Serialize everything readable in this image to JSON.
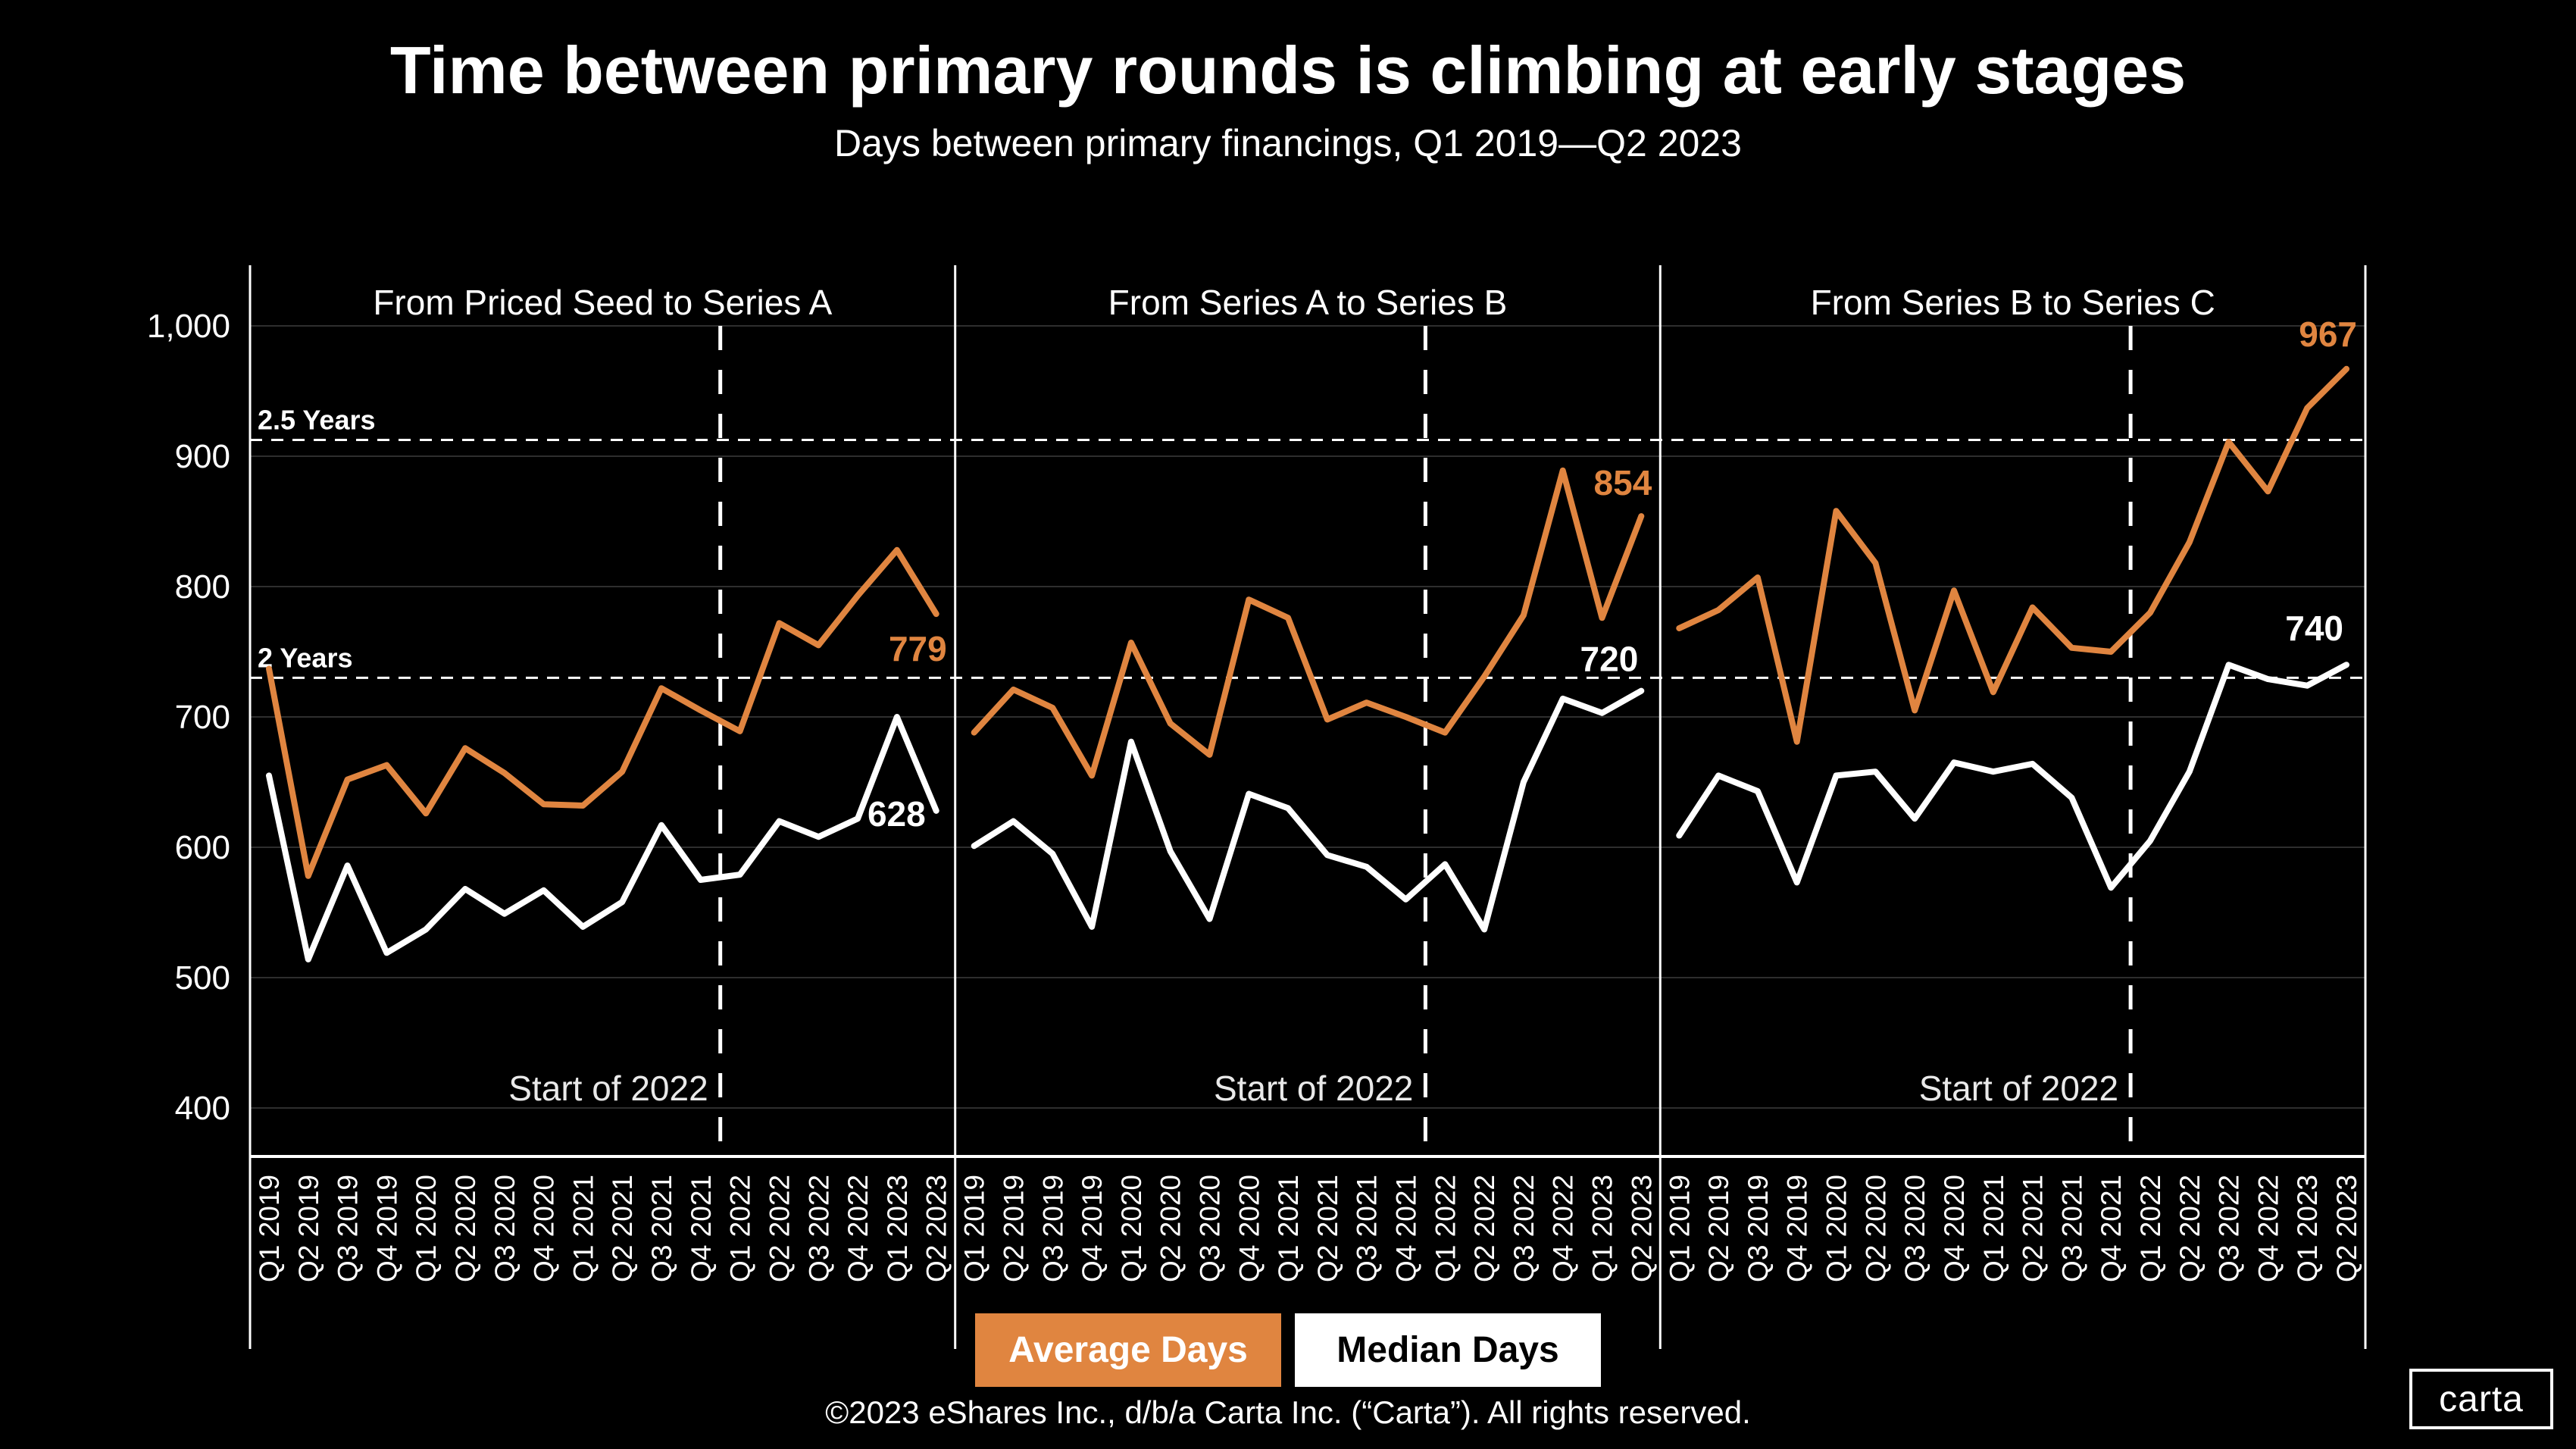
{
  "chart_data": {
    "type": "line",
    "title": "Time between primary rounds is climbing at early stages",
    "subtitle": "Days between primary financings, Q1 2019—Q2 2023",
    "grid": true,
    "colors": {
      "background": "#000000",
      "accent_orange": "#E08540",
      "line_white": "#FFFFFF",
      "gridline": "#2E2E2E"
    },
    "categories": [
      "Q1 2019",
      "Q2 2019",
      "Q3 2019",
      "Q4 2019",
      "Q1 2020",
      "Q2 2020",
      "Q3 2020",
      "Q4 2020",
      "Q1 2021",
      "Q2 2021",
      "Q3 2021",
      "Q4 2021",
      "Q1 2022",
      "Q2 2022",
      "Q3 2022",
      "Q4 2022",
      "Q1 2023",
      "Q2 2023"
    ],
    "ylim": [
      365,
      1045
    ],
    "y_ticks": [
      {
        "label": "1,000",
        "value": 1000
      },
      {
        "label": "900",
        "value": 900
      },
      {
        "label": "800",
        "value": 800
      },
      {
        "label": "700",
        "value": 700
      },
      {
        "label": "600",
        "value": 600
      },
      {
        "label": "500",
        "value": 500
      },
      {
        "label": "400",
        "value": 400
      }
    ],
    "ref_lines": [
      {
        "label": "2.5 Years",
        "value": 912.5
      },
      {
        "label": "2 Years",
        "value": 730
      }
    ],
    "vline": {
      "label": "Start of 2022",
      "between": [
        "Q4 2021",
        "Q1 2022"
      ]
    },
    "panels": [
      {
        "title": "From Priced Seed to Series A",
        "series": [
          {
            "name": "Average Days",
            "color": "#E08540",
            "end_label": "779",
            "label_dx": 14,
            "label_dy": 62,
            "values": [
              737,
              578,
              652,
              663,
              626,
              676,
              657,
              633,
              632,
              658,
              722,
              705,
              689,
              772,
              755,
              793,
              828,
              779
            ]
          },
          {
            "name": "Median Days",
            "color": "#FFFFFF",
            "end_label": "628",
            "label_dx": -14,
            "label_dy": 20,
            "values": [
              655,
              514,
              586,
              519,
              537,
              568,
              549,
              567,
              539,
              558,
              617,
              575,
              579,
              620,
              608,
              622,
              700,
              628
            ]
          }
        ]
      },
      {
        "title": "From Series A to Series B",
        "series": [
          {
            "name": "Average Days",
            "color": "#E08540",
            "end_label": "854",
            "label_dx": 14,
            "label_dy": -28,
            "values": [
              688,
              721,
              707,
              655,
              757,
              695,
              671,
              790,
              776,
              698,
              711,
              700,
              688,
              731,
              778,
              889,
              776,
              854
            ]
          },
          {
            "name": "Median Days",
            "color": "#FFFFFF",
            "end_label": "720",
            "label_dx": -4,
            "label_dy": -26,
            "values": [
              601,
              620,
              595,
              539,
              681,
              597,
              545,
              641,
              630,
              594,
              585,
              560,
              587,
              537,
              650,
              714,
              703,
              720
            ]
          }
        ]
      },
      {
        "title": "From Series B to Series C",
        "series": [
          {
            "name": "Average Days",
            "color": "#E08540",
            "end_label": "967",
            "label_dx": 14,
            "label_dy": -30,
            "values": [
              768,
              782,
              807,
              681,
              858,
              818,
              705,
              797,
              719,
              784,
              753,
              750,
              780,
              834,
              911,
              873,
              937,
              967
            ]
          },
          {
            "name": "Median Days",
            "color": "#FFFFFF",
            "end_label": "740",
            "label_dx": -4,
            "label_dy": -32,
            "values": [
              609,
              655,
              643,
              573,
              655,
              658,
              622,
              665,
              658,
              664,
              638,
              569,
              605,
              658,
              740,
              729,
              724,
              740
            ]
          }
        ]
      }
    ],
    "legend": [
      {
        "label": "Average Days",
        "bg": "#E08540",
        "fg": "#FFFFFF"
      },
      {
        "label": "Median Days",
        "bg": "#FFFFFF",
        "fg": "#000000"
      }
    ],
    "legend_position": "bottom-center"
  },
  "footer": {
    "copyright": "©2023 eShares Inc., d/b/a Carta Inc. (“Carta”). All rights reserved.",
    "logo_text": "carta"
  }
}
